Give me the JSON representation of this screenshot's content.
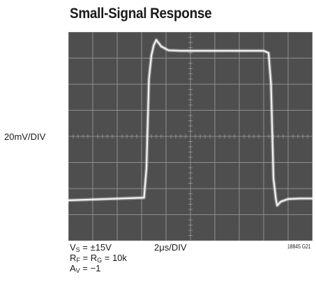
{
  "title": "Small-Signal Response",
  "y_scale_label": "20mV/DIV",
  "x_scale_label": "2μs/DIV",
  "figure_id": "18845 G21",
  "conditions": [
    {
      "main": "V",
      "sub": "S",
      "rest": " = ±15V"
    },
    {
      "main": "R",
      "sub": "F",
      "rest": " = R",
      "sub2": "G",
      "rest2": " = 10k"
    },
    {
      "main": "A",
      "sub": "V",
      "rest": " = −1"
    }
  ],
  "colors": {
    "screen": "#4e4e4e",
    "grid": "#8f8f8f",
    "trace": "#f2f2f2"
  },
  "chart_data": {
    "type": "line",
    "title": "Small-Signal Response",
    "xlabel": "2μs/DIV",
    "ylabel": "20mV/DIV",
    "x_divisions": 10,
    "y_divisions": 8,
    "xlim": [
      0,
      10
    ],
    "ylim": [
      0,
      8
    ],
    "grid": true,
    "series": [
      {
        "x": [
          0,
          3.1,
          3.2,
          3.3,
          3.4,
          3.5,
          3.6,
          3.8,
          4.1,
          4.6,
          8.0,
          8.2,
          8.3,
          8.4,
          8.5,
          8.55,
          8.7,
          9.0,
          9.5,
          10
        ],
        "y": [
          1.55,
          1.65,
          2.8,
          6.2,
          7.1,
          7.5,
          7.7,
          7.45,
          7.3,
          7.28,
          7.28,
          7.2,
          6.0,
          2.4,
          1.6,
          1.35,
          1.5,
          1.6,
          1.62,
          1.62
        ]
      }
    ]
  }
}
